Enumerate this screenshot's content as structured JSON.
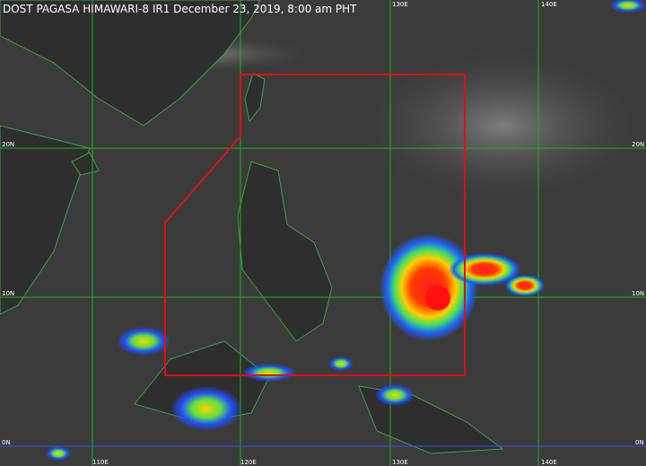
{
  "header": {
    "title": "DOST PAGASA HIMAWARI-8 IR1 December 23, 2019, 8:00 am PHT"
  },
  "grid": {
    "top_labels": [
      "130E",
      "140E"
    ],
    "bottom_labels": [
      "110E",
      "120E",
      "130E",
      "140E"
    ],
    "left_labels": [
      "20N",
      "10N",
      "0N"
    ],
    "right_labels": [
      "20N",
      "10N",
      "0N"
    ]
  }
}
